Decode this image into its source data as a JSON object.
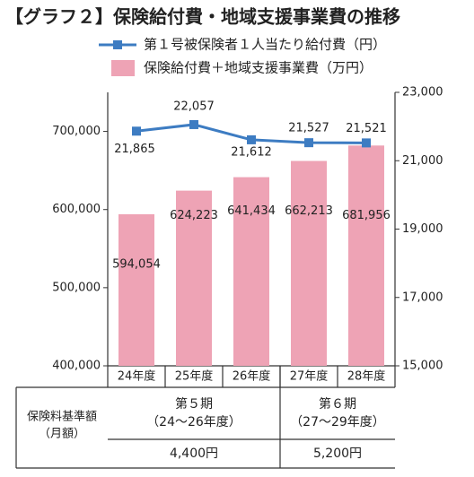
{
  "chart_data": {
    "type": "bar",
    "title": "【グラフ２】保険給付費・地域支援事業費の推移",
    "categories": [
      "24年度",
      "25年度",
      "26年度",
      "27年度",
      "28年度"
    ],
    "series": [
      {
        "name": "保険給付費＋地域支援事業費（万円）",
        "color": "#eea3b5",
        "type": "bar",
        "values": [
          594054,
          624223,
          641434,
          662213,
          681956
        ],
        "value_labels": [
          "594,054",
          "624,223",
          "641,434",
          "662,213",
          "681,956"
        ]
      },
      {
        "name": "第１号被保険者１人当たり給付費（円）",
        "color": "#3d7cc2",
        "type": "line",
        "axis": "y2",
        "values": [
          21865,
          22057,
          21612,
          21527,
          21521
        ],
        "value_labels": [
          "21,865",
          "22,057",
          "21,612",
          "21,527",
          "21,521"
        ]
      }
    ],
    "ylim": [
      400000,
      750000
    ],
    "yticks": [
      {
        "value": 400000,
        "label": "400,000"
      },
      {
        "value": 500000,
        "label": "500,000"
      },
      {
        "value": 600000,
        "label": "600,000"
      },
      {
        "value": 700000,
        "label": "700,000"
      }
    ],
    "y2lim": [
      15000,
      23000
    ],
    "y2ticks": [
      {
        "value": 15000,
        "label": "15,000"
      },
      {
        "value": 17000,
        "label": "17,000"
      },
      {
        "value": 19000,
        "label": "19,000"
      },
      {
        "value": 21000,
        "label": "21,000"
      },
      {
        "value": 23000,
        "label": "23,000"
      }
    ],
    "grid": false
  },
  "table": {
    "row_header": [
      "保険料基準額",
      "（月額）"
    ],
    "periods": [
      {
        "label": "第５期",
        "range": "（24〜26年度）",
        "fee": "4,400円"
      },
      {
        "label": "第６期",
        "range": "（27〜29年度）",
        "fee": "5,200円"
      }
    ]
  }
}
